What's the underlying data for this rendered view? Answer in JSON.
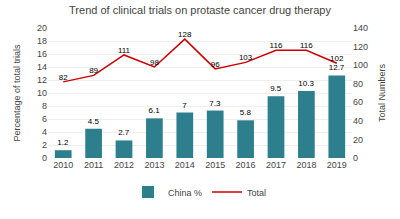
{
  "chart_data": {
    "type": "bar",
    "title": "Trend of clinical trials on protaste cancer drug therapy",
    "categories": [
      "2010",
      "2011",
      "2012",
      "2013",
      "2014",
      "2015",
      "2016",
      "2017",
      "2018",
      "2019"
    ],
    "series": [
      {
        "name": "China %",
        "type": "bar",
        "color": "#2e7f8e",
        "values": [
          1.2,
          4.5,
          2.7,
          6.1,
          7.0,
          7.3,
          5.8,
          9.5,
          10.3,
          12.7
        ]
      },
      {
        "name": "Total",
        "type": "line",
        "color": "#cc0000",
        "axis": "y2",
        "values": [
          82,
          89,
          111,
          98,
          128,
          96,
          103,
          116,
          116,
          102
        ]
      }
    ],
    "ylabel": "Percentage of total trials",
    "y2label": "Total Numbers",
    "ylim": [
      0,
      20
    ],
    "yticks": [
      0,
      2,
      4,
      6,
      8,
      10,
      12,
      14,
      16,
      18,
      20
    ],
    "y2lim": [
      0,
      140
    ],
    "y2ticks": [
      0,
      20,
      40,
      60,
      80,
      100,
      120,
      140
    ],
    "grid": true,
    "legend": "bottom",
    "data_labels": true
  }
}
